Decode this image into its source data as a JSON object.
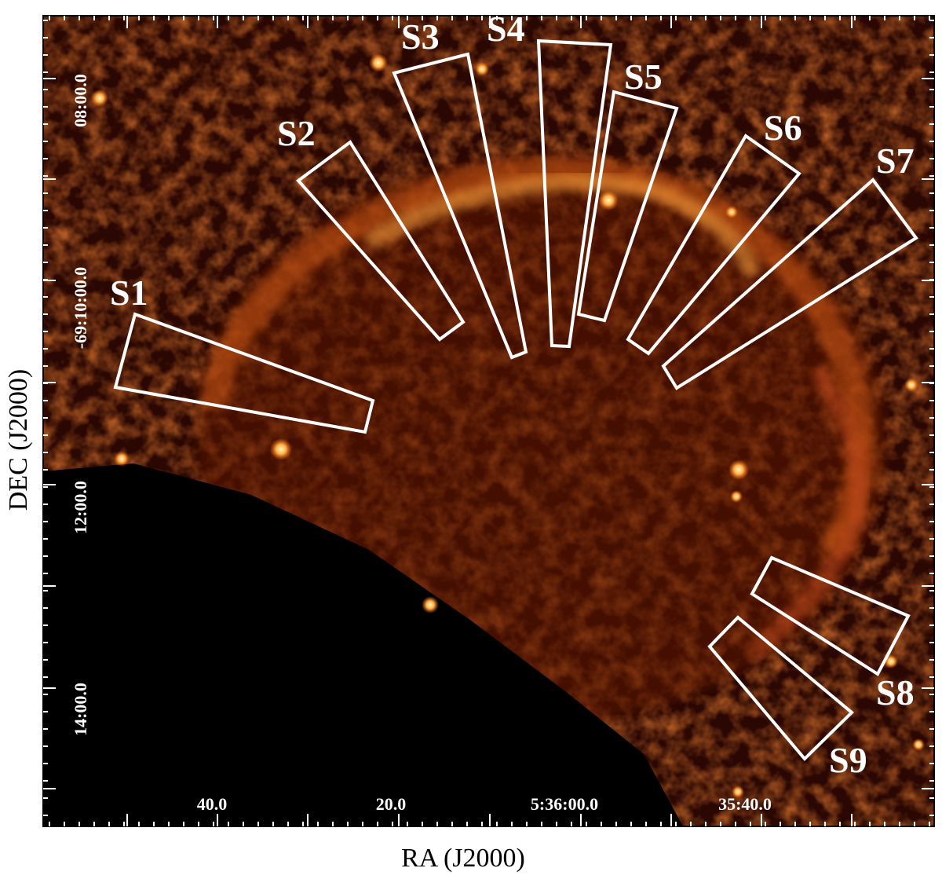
{
  "axes": {
    "xlabel": "RA (J2000)",
    "ylabel": "DEC (J2000)"
  },
  "ra_ticks": [
    "40.0",
    "20.0",
    "5:36:00.0",
    "35:40.0"
  ],
  "dec_ticks": [
    "08:00.0",
    "-69:10:00.0",
    "12:00.0",
    "14:00.0"
  ],
  "regions": [
    "S1",
    "S2",
    "S3",
    "S4",
    "S5",
    "S6",
    "S7",
    "S8",
    "S9"
  ],
  "colors": {
    "background": "#000000",
    "emission_low": "#3a0a02",
    "emission_mid": "#b8380c",
    "emission_high": "#ffd070",
    "overlay": "#ffffff"
  }
}
